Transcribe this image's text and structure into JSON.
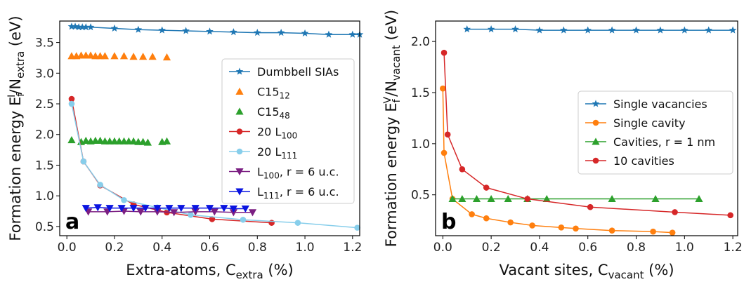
{
  "chart_data": [
    {
      "type": "line",
      "panel_letter": "a",
      "xlabel": {
        "main": "Extra-atoms, C",
        "sub": "extra",
        "tail": " (%)"
      },
      "ylabel": {
        "a": "Formation energy E",
        "b": "f",
        "c": "I",
        "d": "/N",
        "e": "extra",
        "f": " (eV)"
      },
      "xlim": [
        -0.03,
        1.23
      ],
      "ylim": [
        0.35,
        3.85
      ],
      "xticks": [
        0.0,
        0.2,
        0.4,
        0.6,
        0.8,
        1.0,
        1.2
      ],
      "xtick_labels": [
        "0.0",
        "0.2",
        "0.4",
        "0.6",
        "0.8",
        "1.0",
        "1.2"
      ],
      "yticks": [
        0.5,
        1.0,
        1.5,
        2.0,
        2.5,
        3.0,
        3.5
      ],
      "ytick_labels": [
        "0.5",
        "1.0",
        "1.5",
        "2.0",
        "2.5",
        "3.0",
        "3.5"
      ],
      "legend_position": "right",
      "series": [
        {
          "name": "Dumbbell SIAs",
          "name_main": "Dumbbell SIAs",
          "name_sub": "",
          "name_tail": "",
          "color": "#1f77b4",
          "marker": "star",
          "line": true,
          "x": [
            0.02,
            0.035,
            0.05,
            0.065,
            0.08,
            0.1,
            0.2,
            0.3,
            0.4,
            0.5,
            0.6,
            0.7,
            0.8,
            0.9,
            1.0,
            1.1,
            1.2,
            1.23
          ],
          "y": [
            3.76,
            3.76,
            3.75,
            3.75,
            3.75,
            3.75,
            3.73,
            3.71,
            3.7,
            3.69,
            3.68,
            3.67,
            3.66,
            3.66,
            3.65,
            3.63,
            3.63,
            3.63
          ]
        },
        {
          "name": "C15_12",
          "name_main": "C15",
          "name_sub": "12",
          "name_tail": "",
          "color": "#ff7f0e",
          "marker": "triangle",
          "line": false,
          "x": [
            0.02,
            0.04,
            0.06,
            0.08,
            0.1,
            0.12,
            0.14,
            0.16,
            0.2,
            0.24,
            0.28,
            0.32,
            0.36,
            0.42
          ],
          "y": [
            3.28,
            3.28,
            3.29,
            3.29,
            3.29,
            3.28,
            3.28,
            3.28,
            3.28,
            3.28,
            3.27,
            3.27,
            3.27,
            3.26
          ]
        },
        {
          "name": "C15_48",
          "name_main": "C15",
          "name_sub": "48",
          "name_tail": "",
          "color": "#2ca02c",
          "marker": "triangle",
          "line": false,
          "x": [
            0.02,
            0.06,
            0.08,
            0.1,
            0.12,
            0.14,
            0.16,
            0.18,
            0.2,
            0.22,
            0.24,
            0.26,
            0.28,
            0.3,
            0.32,
            0.34,
            0.4,
            0.42
          ],
          "y": [
            1.91,
            1.88,
            1.9,
            1.89,
            1.9,
            1.9,
            1.89,
            1.89,
            1.89,
            1.89,
            1.89,
            1.89,
            1.89,
            1.88,
            1.88,
            1.87,
            1.88,
            1.89
          ]
        },
        {
          "name": "20 L100",
          "name_main": "20 L",
          "name_sub": "100",
          "name_tail": "",
          "color": "#d62728",
          "marker": "circle",
          "line": true,
          "x": [
            0.02,
            0.07,
            0.14,
            0.28,
            0.42,
            0.61,
            0.86
          ],
          "y": [
            2.58,
            1.56,
            1.17,
            0.86,
            0.73,
            0.62,
            0.56
          ]
        },
        {
          "name": "20 L111",
          "name_main": "20 L",
          "name_sub": "111",
          "name_tail": "",
          "color": "#87ceeb",
          "marker": "circle",
          "line": true,
          "x": [
            0.02,
            0.07,
            0.14,
            0.24,
            0.38,
            0.52,
            0.74,
            0.97,
            1.22
          ],
          "y": [
            2.5,
            1.56,
            1.18,
            0.93,
            0.81,
            0.69,
            0.61,
            0.56,
            0.48
          ]
        },
        {
          "name": "L100, r = 6 u.c.",
          "name_main": "L",
          "name_sub": "100",
          "name_tail": ", r = 6 u.c.",
          "color": "#7b1f82",
          "marker": "triangle-down",
          "line": true,
          "x": [
            0.09,
            0.17,
            0.24,
            0.31,
            0.38,
            0.45,
            0.54,
            0.62,
            0.7,
            0.78
          ],
          "y": [
            0.74,
            0.74,
            0.75,
            0.74,
            0.74,
            0.73,
            0.74,
            0.74,
            0.73,
            0.73
          ]
        },
        {
          "name": "L111, r = 6 u.c.",
          "name_main": "L",
          "name_sub": "111",
          "name_tail": ", r = 6 u.c.",
          "color": "#0a14e0",
          "marker": "triangle-down",
          "line": true,
          "x": [
            0.08,
            0.13,
            0.18,
            0.23,
            0.28,
            0.33,
            0.38,
            0.43,
            0.48,
            0.54,
            0.6,
            0.66,
            0.7,
            0.75
          ],
          "y": [
            0.8,
            0.81,
            0.8,
            0.8,
            0.8,
            0.8,
            0.8,
            0.8,
            0.8,
            0.8,
            0.8,
            0.8,
            0.79,
            0.79
          ]
        }
      ]
    },
    {
      "type": "line",
      "panel_letter": "b",
      "xlabel": {
        "main": "Vacant sites, C",
        "sub": "vacant",
        "tail": " (%)"
      },
      "ylabel": {
        "a": "Formation energy E",
        "b": "f",
        "c": "V",
        "d": "/N",
        "e": "vacant",
        "f": " (eV)"
      },
      "xlim": [
        -0.03,
        1.22
      ],
      "ylim": [
        0.1,
        2.2
      ],
      "xticks": [
        0.0,
        0.2,
        0.4,
        0.6,
        0.8,
        1.0,
        1.2
      ],
      "xtick_labels": [
        "0.0",
        "0.2",
        "0.4",
        "0.6",
        "0.8",
        "1.0",
        "1.2"
      ],
      "yticks": [
        0.5,
        1.0,
        1.5,
        2.0
      ],
      "ytick_labels": [
        "0.5",
        "1.0",
        "1.5",
        "2.0"
      ],
      "legend_position": "center-right",
      "series": [
        {
          "name": "Single vacancies",
          "name_main": "Single vacancies",
          "name_sub": "",
          "name_tail": "",
          "color": "#1f77b4",
          "marker": "star",
          "line": true,
          "x": [
            0.1,
            0.2,
            0.3,
            0.4,
            0.5,
            0.6,
            0.7,
            0.8,
            0.9,
            1.0,
            1.1,
            1.2
          ],
          "y": [
            2.12,
            2.12,
            2.12,
            2.11,
            2.11,
            2.11,
            2.11,
            2.11,
            2.11,
            2.11,
            2.11,
            2.11
          ]
        },
        {
          "name": "Single cavity",
          "name_main": "Single cavity",
          "name_sub": "",
          "name_tail": "",
          "color": "#ff7f0e",
          "marker": "circle",
          "line": true,
          "x": [
            0.0,
            0.005,
            0.04,
            0.12,
            0.18,
            0.28,
            0.37,
            0.49,
            0.55,
            0.7,
            0.87,
            0.95
          ],
          "y": [
            1.54,
            0.91,
            0.46,
            0.31,
            0.27,
            0.23,
            0.2,
            0.18,
            0.17,
            0.15,
            0.14,
            0.13
          ]
        },
        {
          "name": "Cavities, r = 1 nm",
          "name_main": "Cavities, r = 1 nm",
          "name_sub": "",
          "name_tail": "",
          "color": "#2ca02c",
          "marker": "triangle",
          "line": true,
          "x": [
            0.04,
            0.08,
            0.14,
            0.2,
            0.27,
            0.35,
            0.43,
            0.7,
            0.88,
            1.06
          ],
          "y": [
            0.46,
            0.46,
            0.46,
            0.46,
            0.46,
            0.46,
            0.46,
            0.46,
            0.46,
            0.46
          ]
        },
        {
          "name": "10 cavities",
          "name_main": "10 cavities",
          "name_sub": "",
          "name_tail": "",
          "color": "#d62728",
          "marker": "circle",
          "line": true,
          "x": [
            0.005,
            0.02,
            0.08,
            0.18,
            0.35,
            0.61,
            0.96,
            1.19
          ],
          "y": [
            1.89,
            1.09,
            0.75,
            0.57,
            0.46,
            0.38,
            0.33,
            0.3
          ]
        }
      ]
    }
  ]
}
